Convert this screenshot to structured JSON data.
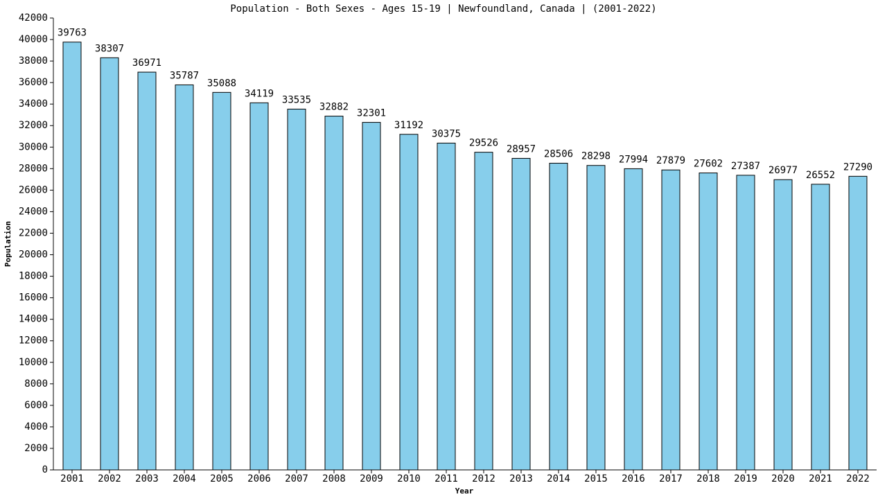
{
  "chart_data": {
    "type": "bar",
    "title": "Population - Both Sexes - Ages 15-19 | Newfoundland, Canada |  (2001-2022)",
    "x_label": "Year",
    "y_label": "Population",
    "categories": [
      "2001",
      "2002",
      "2003",
      "2004",
      "2005",
      "2006",
      "2007",
      "2008",
      "2009",
      "2010",
      "2011",
      "2012",
      "2013",
      "2014",
      "2015",
      "2016",
      "2017",
      "2018",
      "2019",
      "2020",
      "2021",
      "2022"
    ],
    "values": [
      39763,
      38307,
      36971,
      35787,
      35088,
      34119,
      33535,
      32882,
      32301,
      31192,
      30375,
      29526,
      28957,
      28506,
      28298,
      27994,
      27879,
      27602,
      27387,
      26977,
      26552,
      27290
    ],
    "color": "#87ceeb",
    "ylim": [
      0,
      42000
    ],
    "yticks": [
      0,
      2000,
      4000,
      6000,
      8000,
      10000,
      12000,
      14000,
      16000,
      18000,
      20000,
      22000,
      24000,
      26000,
      28000,
      30000,
      32000,
      34000,
      36000,
      38000,
      40000,
      42000
    ],
    "grid": false
  }
}
